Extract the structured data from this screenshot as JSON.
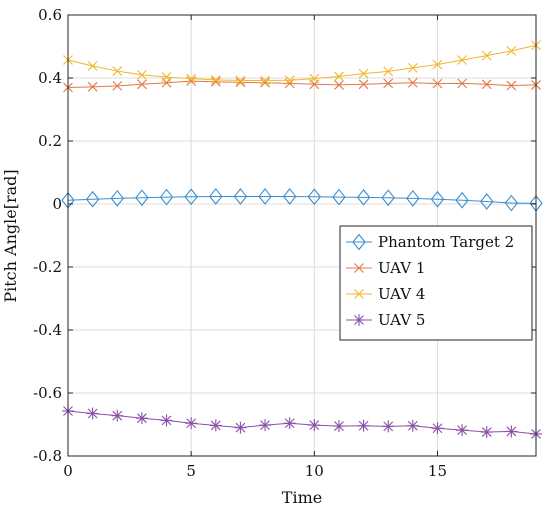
{
  "chart_data": {
    "type": "line",
    "title": "",
    "xlabel": "Time",
    "ylabel": "Pitch Angle[rad]",
    "xlim": [
      0,
      19
    ],
    "ylim": [
      -0.8,
      0.6
    ],
    "x_ticks": [
      0,
      5,
      10,
      15
    ],
    "y_ticks": [
      0.6,
      0.4,
      0.2,
      0,
      -0.2,
      -0.4,
      -0.6,
      -0.8
    ],
    "x_tick_labels": [
      "0",
      "5",
      "10",
      "15"
    ],
    "y_tick_labels": [
      "0.6",
      "0.4",
      "0.2",
      "0",
      "-0.2",
      "-0.4",
      "-0.6",
      "-0.8"
    ],
    "grid": true,
    "legend_position": "center-right",
    "x": [
      0,
      1,
      2,
      3,
      4,
      5,
      6,
      7,
      8,
      9,
      10,
      11,
      12,
      13,
      14,
      15,
      16,
      17,
      18,
      19
    ],
    "series": [
      {
        "name": "Phantom Target 2",
        "color": "#3a8fd0",
        "marker": "diamond",
        "values": [
          0.012,
          0.015,
          0.018,
          0.02,
          0.022,
          0.023,
          0.024,
          0.024,
          0.024,
          0.024,
          0.023,
          0.022,
          0.021,
          0.02,
          0.018,
          0.015,
          0.012,
          0.008,
          0.003,
          0.002
        ]
      },
      {
        "name": "UAV 1",
        "color": "#e2784a",
        "marker": "x",
        "values": [
          0.37,
          0.372,
          0.375,
          0.38,
          0.385,
          0.39,
          0.388,
          0.386,
          0.385,
          0.383,
          0.38,
          0.378,
          0.38,
          0.383,
          0.385,
          0.382,
          0.383,
          0.38,
          0.376,
          0.378
        ]
      },
      {
        "name": "UAV 4",
        "color": "#f2b62a",
        "marker": "x",
        "values": [
          0.457,
          0.438,
          0.422,
          0.41,
          0.403,
          0.398,
          0.394,
          0.392,
          0.392,
          0.393,
          0.398,
          0.405,
          0.414,
          0.421,
          0.432,
          0.443,
          0.457,
          0.471,
          0.486,
          0.504
        ]
      },
      {
        "name": "UAV 5",
        "color": "#8b4fa8",
        "marker": "asterisk",
        "values": [
          -0.657,
          -0.665,
          -0.672,
          -0.68,
          -0.687,
          -0.696,
          -0.703,
          -0.71,
          -0.702,
          -0.696,
          -0.702,
          -0.705,
          -0.704,
          -0.706,
          -0.704,
          -0.712,
          -0.718,
          -0.724,
          -0.722,
          -0.73
        ]
      }
    ]
  }
}
